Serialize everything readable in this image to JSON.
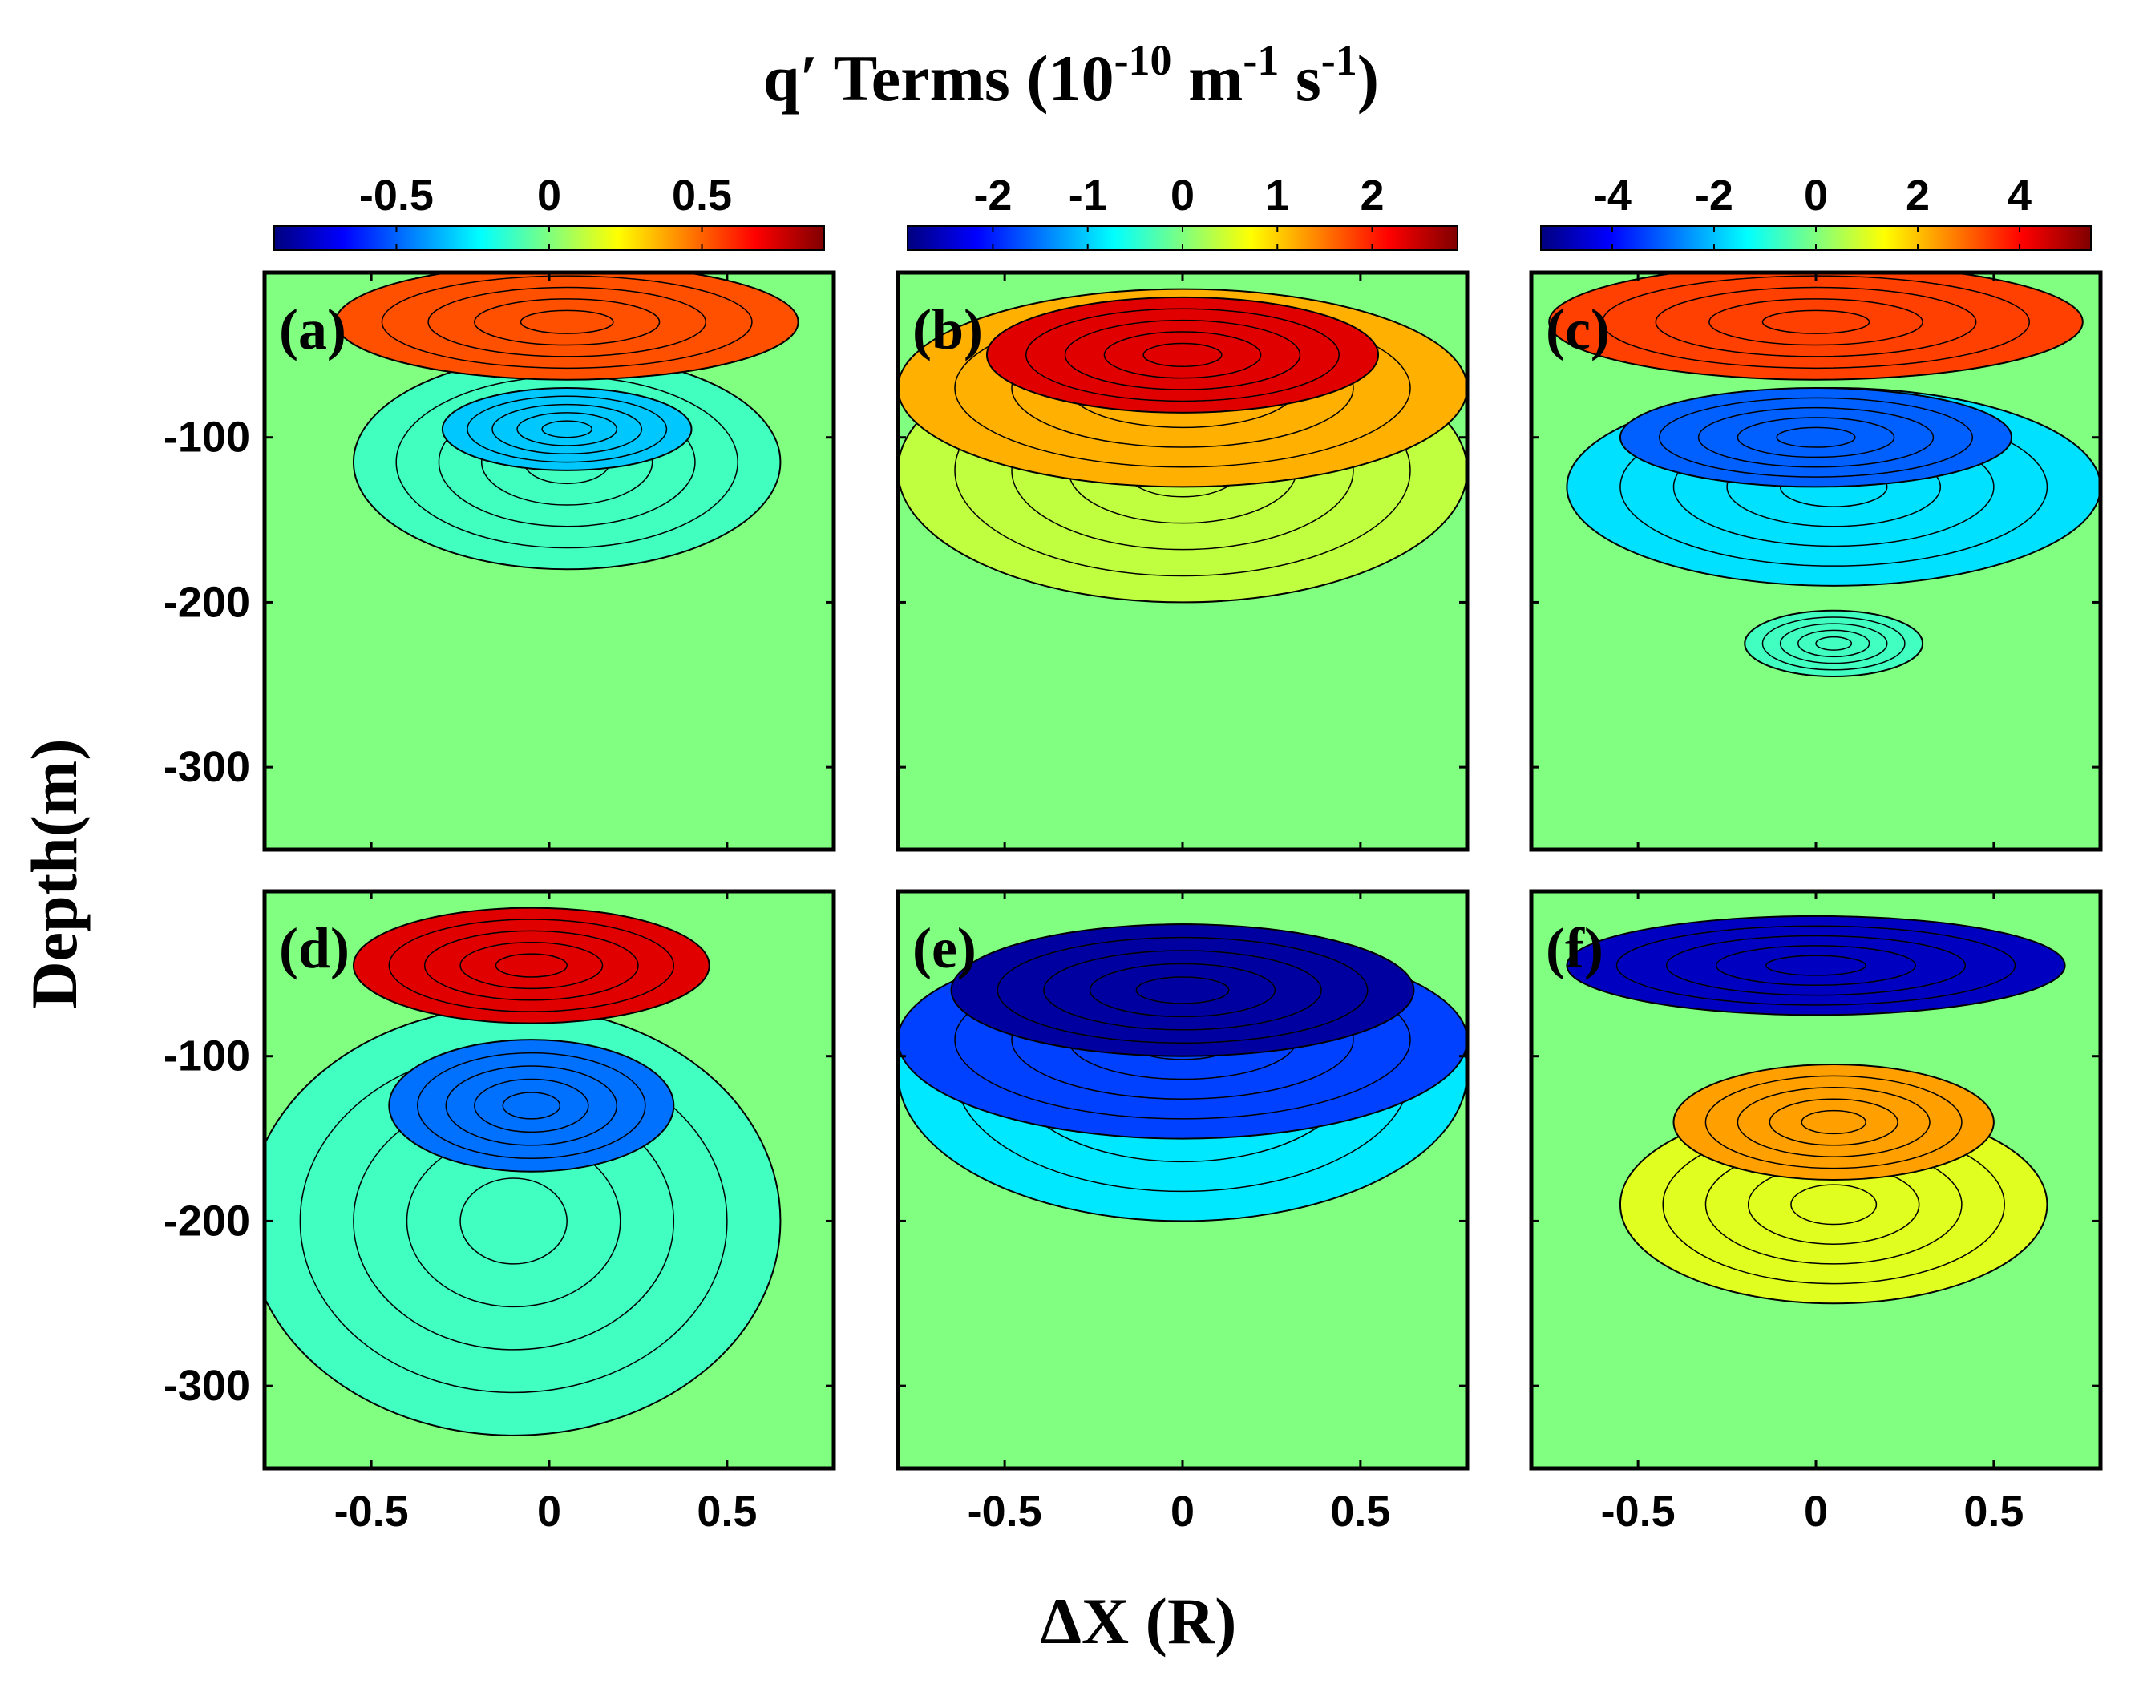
{
  "chart_data": {
    "type": "contour",
    "title": {
      "base": "q′ Terms (10",
      "exp1": "-10",
      "mid1": " m",
      "exp2": "-1",
      "mid2": " s",
      "exp3": "-1",
      "end": ")"
    },
    "xlabel": "ΔX (R)",
    "ylabel": "Depth(m)",
    "xlim": [
      -0.8,
      0.8
    ],
    "ylim": [
      -350,
      0
    ],
    "xticks": [
      -0.5,
      0,
      0.5
    ],
    "xtick_labels": [
      "-0.5",
      "0",
      "0.5"
    ],
    "yticks": [
      -100,
      -200,
      -300
    ],
    "ytick_labels": [
      "-100",
      "-200",
      "-300"
    ],
    "colormap": [
      "#00007f",
      "#0000ff",
      "#007fff",
      "#00ffff",
      "#7fff7f",
      "#ffff00",
      "#ff7f00",
      "#ff0000",
      "#7f0000"
    ],
    "background_color": "#80ff80",
    "colorbars": [
      {
        "column": 1,
        "range": [
          -0.9,
          0.9
        ],
        "ticks": [
          -0.5,
          0,
          0.5
        ],
        "tick_labels": [
          "-0.5",
          "0",
          "0.5"
        ]
      },
      {
        "column": 2,
        "range": [
          -2.9,
          2.9
        ],
        "ticks": [
          -2,
          -1,
          0,
          1,
          2
        ],
        "tick_labels": [
          "-2",
          "-1",
          "0",
          "1",
          "2"
        ]
      },
      {
        "column": 3,
        "range": [
          -5.4,
          5.4
        ],
        "ticks": [
          -4,
          -2,
          0,
          2,
          4
        ],
        "tick_labels": [
          "-4",
          "-2",
          "0",
          "2",
          "4"
        ]
      }
    ],
    "panels": [
      {
        "label": "(a)",
        "row": 1,
        "column": 1,
        "features": [
          {
            "sign": "positive",
            "level": 0.7,
            "x_center": 0.05,
            "depth_center": -30,
            "x_halfwidth": 0.65,
            "depth_halfwidth": 35,
            "color": "#ff5000"
          },
          {
            "sign": "negative",
            "level": -0.4,
            "x_center": 0.05,
            "depth_center": -95,
            "x_halfwidth": 0.35,
            "depth_halfwidth": 25,
            "color": "#00c8ff"
          },
          {
            "sign": "negative",
            "level": -0.15,
            "x_center": 0.05,
            "depth_center": -115,
            "x_halfwidth": 0.6,
            "depth_halfwidth": 65,
            "color": "#40ffbf"
          }
        ]
      },
      {
        "label": "(b)",
        "row": 1,
        "column": 2,
        "features": [
          {
            "sign": "positive",
            "level": 2.6,
            "x_center": 0.0,
            "depth_center": -50,
            "x_halfwidth": 0.55,
            "depth_halfwidth": 35,
            "color": "#e00000"
          },
          {
            "sign": "positive",
            "level": 1.2,
            "x_center": 0.0,
            "depth_center": -70,
            "x_halfwidth": 0.8,
            "depth_halfwidth": 60,
            "color": "#ffb000"
          },
          {
            "sign": "positive",
            "level": 0.4,
            "x_center": 0.0,
            "depth_center": -120,
            "x_halfwidth": 0.8,
            "depth_halfwidth": 80,
            "color": "#c0ff40"
          }
        ]
      },
      {
        "label": "(c)",
        "row": 1,
        "column": 3,
        "features": [
          {
            "sign": "positive",
            "level": 3.0,
            "x_center": 0.0,
            "depth_center": -30,
            "x_halfwidth": 0.75,
            "depth_halfwidth": 35,
            "color": "#ff4000"
          },
          {
            "sign": "negative",
            "level": -2.5,
            "x_center": 0.0,
            "depth_center": -100,
            "x_halfwidth": 0.55,
            "depth_halfwidth": 30,
            "color": "#0060ff"
          },
          {
            "sign": "negative",
            "level": -1.0,
            "x_center": 0.05,
            "depth_center": -130,
            "x_halfwidth": 0.75,
            "depth_halfwidth": 60,
            "color": "#00e0ff"
          },
          {
            "sign": "negative",
            "level": -0.5,
            "x_center": 0.05,
            "depth_center": -225,
            "x_halfwidth": 0.25,
            "depth_halfwidth": 20,
            "color": "#40ffc0"
          }
        ]
      },
      {
        "label": "(d)",
        "row": 2,
        "column": 1,
        "features": [
          {
            "sign": "positive",
            "level": 0.8,
            "x_center": -0.05,
            "depth_center": -45,
            "x_halfwidth": 0.5,
            "depth_halfwidth": 35,
            "color": "#e00000"
          },
          {
            "sign": "negative",
            "level": -0.45,
            "x_center": -0.05,
            "depth_center": -130,
            "x_halfwidth": 0.4,
            "depth_halfwidth": 40,
            "color": "#0070ff"
          },
          {
            "sign": "negative",
            "level": -0.1,
            "x_center": -0.1,
            "depth_center": -200,
            "x_halfwidth": 0.75,
            "depth_halfwidth": 130,
            "color": "#40ffc0"
          }
        ]
      },
      {
        "label": "(e)",
        "row": 2,
        "column": 2,
        "features": [
          {
            "sign": "negative",
            "level": -2.6,
            "x_center": 0.0,
            "depth_center": -60,
            "x_halfwidth": 0.65,
            "depth_halfwidth": 40,
            "color": "#0000a0"
          },
          {
            "sign": "negative",
            "level": -1.5,
            "x_center": 0.0,
            "depth_center": -90,
            "x_halfwidth": 0.8,
            "depth_halfwidth": 60,
            "color": "#0040ff"
          },
          {
            "sign": "negative",
            "level": -0.5,
            "x_center": 0.0,
            "depth_center": -110,
            "x_halfwidth": 0.8,
            "depth_halfwidth": 90,
            "color": "#00e8ff"
          }
        ]
      },
      {
        "label": "(f)",
        "row": 2,
        "column": 3,
        "features": [
          {
            "sign": "negative",
            "level": -4.5,
            "x_center": 0.0,
            "depth_center": -45,
            "x_halfwidth": 0.7,
            "depth_halfwidth": 30,
            "color": "#0000c0"
          },
          {
            "sign": "positive",
            "level": 2.0,
            "x_center": 0.05,
            "depth_center": -140,
            "x_halfwidth": 0.45,
            "depth_halfwidth": 35,
            "color": "#ffa000"
          },
          {
            "sign": "positive",
            "level": 0.8,
            "x_center": 0.05,
            "depth_center": -190,
            "x_halfwidth": 0.6,
            "depth_halfwidth": 60,
            "color": "#e0ff20"
          }
        ]
      }
    ]
  }
}
